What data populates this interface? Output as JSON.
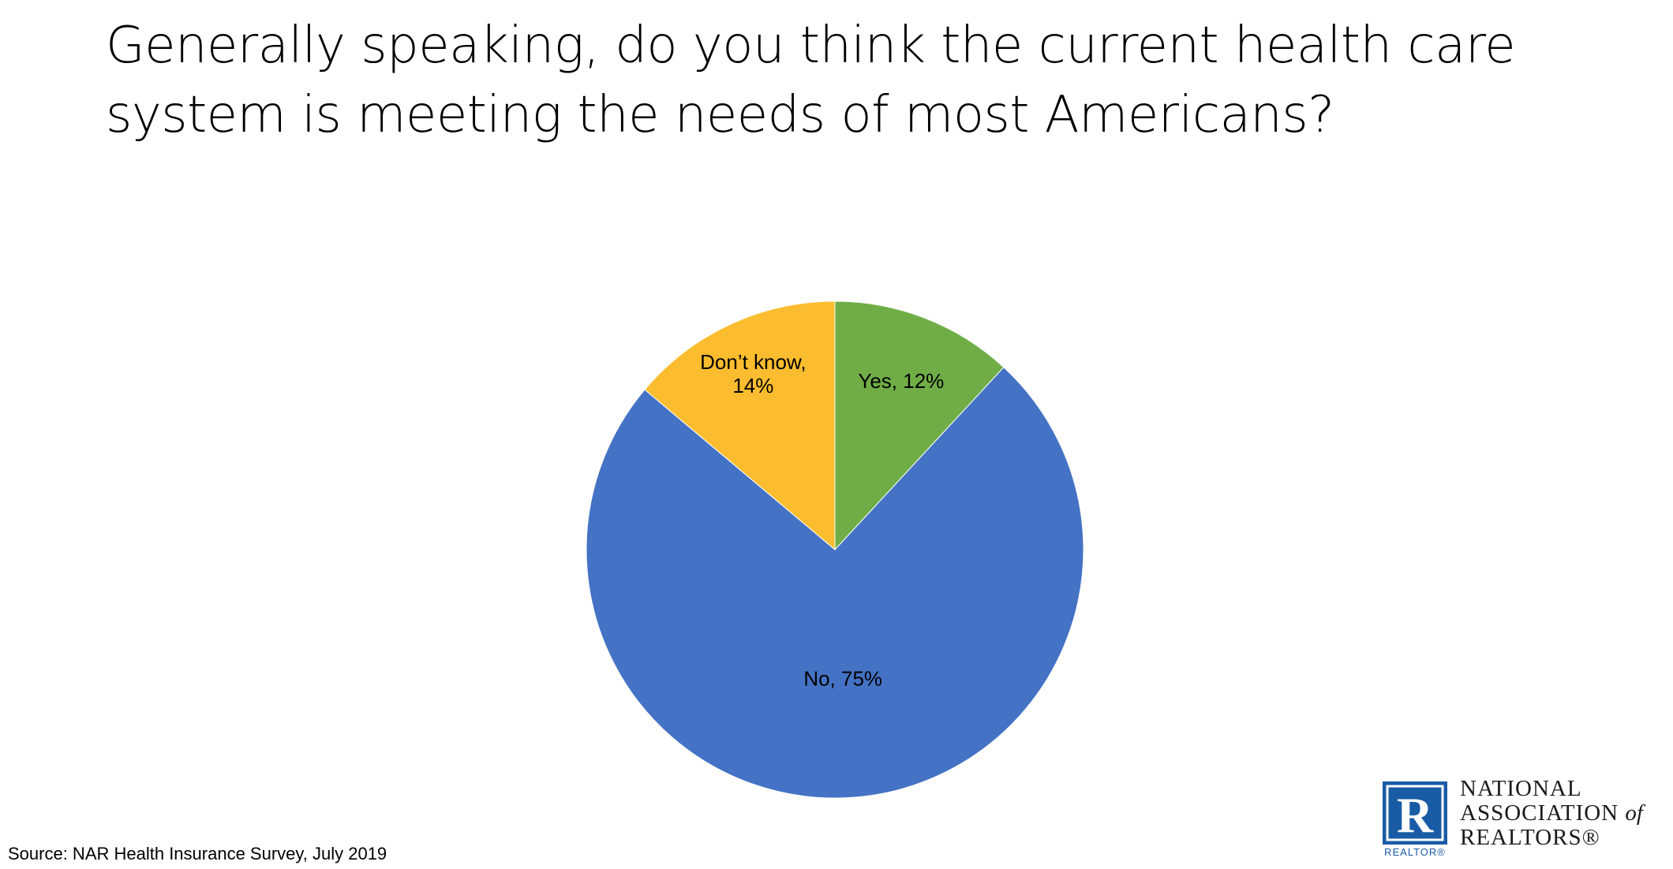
{
  "title": {
    "line1": "Generally speaking, do you think the current health care",
    "line2": "system is meeting the needs of most Americans?"
  },
  "chart_data": {
    "type": "pie",
    "title": "Generally speaking, do you think the current health care system is meeting the needs of most Americans?",
    "slices": [
      {
        "label": "Yes, 12%",
        "category": "Yes",
        "value": 12,
        "color": "#70ad47"
      },
      {
        "label": "No, 75%",
        "category": "No",
        "value": 75,
        "color": "#4472c4"
      },
      {
        "label_lines": [
          "Don’t know,",
          "14%"
        ],
        "category": "Don’t know",
        "value": 14,
        "color": "#fbbd2f"
      }
    ],
    "start": "12 o'clock",
    "direction": "clockwise",
    "legend": "none"
  },
  "source": "Source: NAR Health Insurance Survey, July 2019",
  "logo": {
    "line1": "NATIONAL",
    "line2_main": "ASSOCIATION",
    "line2_of": "of",
    "line3": "REALTORS®",
    "mark_letter": "R",
    "mark_caption": "REALTOR®",
    "brand_color": "#1a5ba6"
  }
}
